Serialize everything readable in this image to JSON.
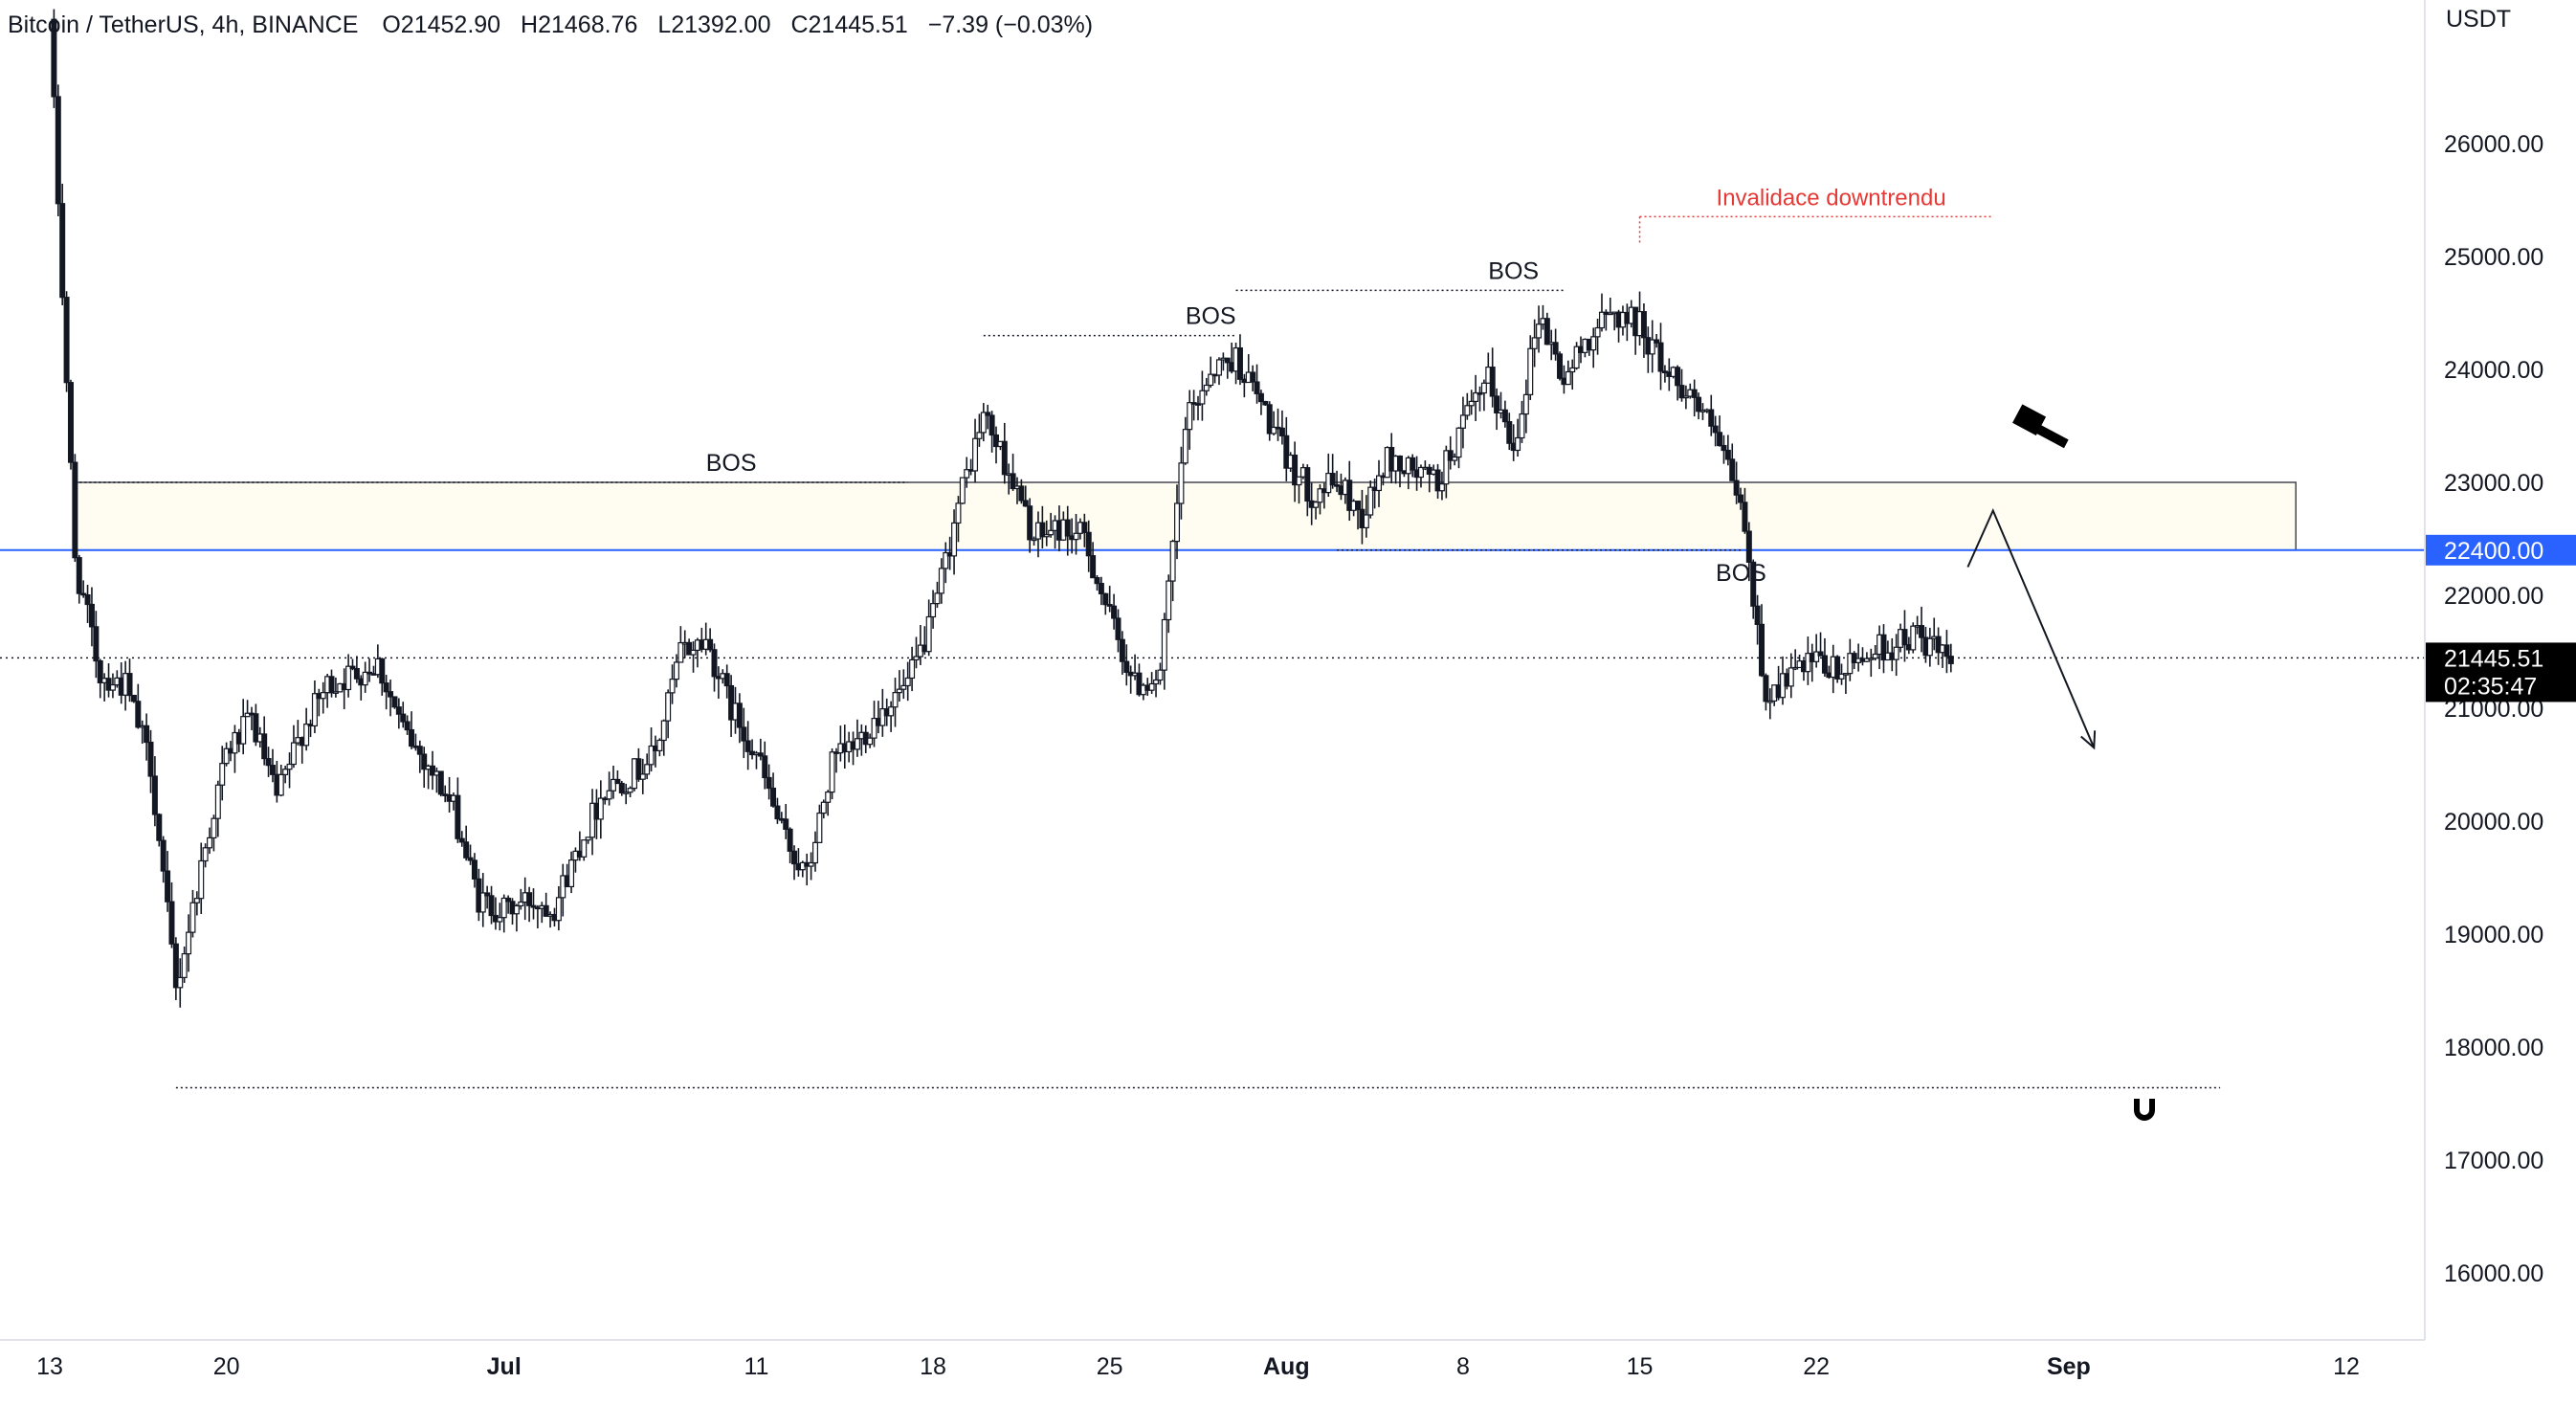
{
  "header": {
    "symbol": "Bitcoin / TetherUS",
    "interval": "4h",
    "exchange": "BINANCE",
    "open": "O21452.90",
    "high": "H21468.76",
    "low": "L21392.00",
    "close": "C21445.51",
    "change": "−7.39 (−0.03%)"
  },
  "chart_data": {
    "type": "candlestick",
    "currency_label": "USDT",
    "y_ticks": [
      "16000.00",
      "17000.00",
      "18000.00",
      "19000.00",
      "20000.00",
      "21000.00",
      "22000.00",
      "23000.00",
      "24000.00",
      "25000.00",
      "26000.00"
    ],
    "y_range": [
      15400,
      27300
    ],
    "x_ticks": [
      {
        "label": "13",
        "date": "2022-06-13",
        "bold": false
      },
      {
        "label": "20",
        "date": "2022-06-20",
        "bold": false
      },
      {
        "label": "Jul",
        "date": "2022-07-01",
        "bold": true
      },
      {
        "label": "11",
        "date": "2022-07-11",
        "bold": false
      },
      {
        "label": "18",
        "date": "2022-07-18",
        "bold": false
      },
      {
        "label": "25",
        "date": "2022-07-25",
        "bold": false
      },
      {
        "label": "Aug",
        "date": "2022-08-01",
        "bold": true
      },
      {
        "label": "8",
        "date": "2022-08-08",
        "bold": false
      },
      {
        "label": "15",
        "date": "2022-08-15",
        "bold": false
      },
      {
        "label": "22",
        "date": "2022-08-22",
        "bold": false
      },
      {
        "label": "Sep",
        "date": "2022-09-01",
        "bold": true
      },
      {
        "label": "12",
        "date": "2022-09-12",
        "bold": false
      }
    ],
    "x_range": [
      "2022-06-13",
      "2022-09-15"
    ],
    "price_path": [
      [
        "2022-06-13",
        27100
      ],
      [
        "2022-06-14",
        22300
      ],
      [
        "2022-06-15",
        21300
      ],
      [
        "2022-06-16",
        21200
      ],
      [
        "2022-06-17",
        20500
      ],
      [
        "2022-06-18",
        18500
      ],
      [
        "2022-06-19",
        19600
      ],
      [
        "2022-06-20",
        20600
      ],
      [
        "2022-06-21",
        20900
      ],
      [
        "2022-06-22",
        20200
      ],
      [
        "2022-06-23",
        20800
      ],
      [
        "2022-06-24",
        21200
      ],
      [
        "2022-06-25",
        21300
      ],
      [
        "2022-06-26",
        21400
      ],
      [
        "2022-06-27",
        20800
      ],
      [
        "2022-06-28",
        20500
      ],
      [
        "2022-06-29",
        20100
      ],
      [
        "2022-06-30",
        19300
      ],
      [
        "2022-07-01",
        19200
      ],
      [
        "2022-07-02",
        19300
      ],
      [
        "2022-07-03",
        19250
      ],
      [
        "2022-07-04",
        19800
      ],
      [
        "2022-07-05",
        20300
      ],
      [
        "2022-07-06",
        20400
      ],
      [
        "2022-07-07",
        20600
      ],
      [
        "2022-07-08",
        21500
      ],
      [
        "2022-07-09",
        21600
      ],
      [
        "2022-07-10",
        21000
      ],
      [
        "2022-07-11",
        20600
      ],
      [
        "2022-07-12",
        19900
      ],
      [
        "2022-07-13",
        19500
      ],
      [
        "2022-07-14",
        20500
      ],
      [
        "2022-07-15",
        20700
      ],
      [
        "2022-07-16",
        21000
      ],
      [
        "2022-07-17",
        21200
      ],
      [
        "2022-07-18",
        21800
      ],
      [
        "2022-07-19",
        22800
      ],
      [
        "2022-07-20",
        23600
      ],
      [
        "2022-07-21",
        23100
      ],
      [
        "2022-07-22",
        22500
      ],
      [
        "2022-07-23",
        22600
      ],
      [
        "2022-07-24",
        22500
      ],
      [
        "2022-07-25",
        21800
      ],
      [
        "2022-07-26",
        21200
      ],
      [
        "2022-07-27",
        21300
      ],
      [
        "2022-07-28",
        23500
      ],
      [
        "2022-07-29",
        24000
      ],
      [
        "2022-07-30",
        24100
      ],
      [
        "2022-07-31",
        23700
      ],
      [
        "2022-08-01",
        23200
      ],
      [
        "2022-08-02",
        22900
      ],
      [
        "2022-08-03",
        23000
      ],
      [
        "2022-08-04",
        22700
      ],
      [
        "2022-08-05",
        23200
      ],
      [
        "2022-08-06",
        23100
      ],
      [
        "2022-08-07",
        23000
      ],
      [
        "2022-08-08",
        23500
      ],
      [
        "2022-08-09",
        23900
      ],
      [
        "2022-08-10",
        23300
      ],
      [
        "2022-08-11",
        24500
      ],
      [
        "2022-08-12",
        23900
      ],
      [
        "2022-08-13",
        24300
      ],
      [
        "2022-08-14",
        24500
      ],
      [
        "2022-08-15",
        24400
      ],
      [
        "2022-08-16",
        24000
      ],
      [
        "2022-08-17",
        23800
      ],
      [
        "2022-08-18",
        23400
      ],
      [
        "2022-08-19",
        22800
      ],
      [
        "2022-08-20",
        21100
      ],
      [
        "2022-08-21",
        21300
      ],
      [
        "2022-08-22",
        21400
      ],
      [
        "2022-08-23",
        21300
      ],
      [
        "2022-08-24",
        21500
      ],
      [
        "2022-08-25",
        21550
      ],
      [
        "2022-08-26",
        21650
      ],
      [
        "2022-08-27",
        21445.51
      ]
    ],
    "zone": {
      "from": "2022-06-14",
      "to": "2022-09-10",
      "low": 22400,
      "high": 23000
    },
    "price_lines": [
      {
        "name": "zone-level",
        "value": 22400,
        "label": "22400.00",
        "color": "#2962ff"
      },
      {
        "name": "last-price",
        "value": 21445.51,
        "label": "21445.51",
        "countdown": "02:35:47"
      }
    ],
    "support_level": {
      "value": 17640,
      "from": "2022-06-18",
      "to": "2022-09-07"
    },
    "bos_labels": [
      {
        "text": "BOS",
        "date": "2022-07-09",
        "value": 23000,
        "line_from": "2022-06-14",
        "line_to": "2022-07-17"
      },
      {
        "text": "BOS",
        "date": "2022-07-28",
        "value": 24300,
        "line_from": "2022-07-20",
        "line_to": "2022-07-30"
      },
      {
        "text": "BOS",
        "date": "2022-08-09",
        "value": 24700,
        "line_from": "2022-07-30",
        "line_to": "2022-08-12"
      },
      {
        "text": "BOS",
        "date": "2022-08-19",
        "value": 22400,
        "line_from": "2022-08-03",
        "line_to": "2022-08-19"
      }
    ],
    "annotation": {
      "text": "Invalidace downtrendu",
      "value": 25200,
      "from": "2022-08-15",
      "to": "2022-08-29",
      "color": "#e53935"
    },
    "projection": [
      [
        "2022-08-28",
        22250
      ],
      [
        "2022-08-29",
        22750
      ],
      [
        "2022-09-02",
        20650
      ]
    ],
    "colors": {
      "candle": "#131722",
      "zone_fill": "#fffdf2",
      "zone_border": "#434651",
      "blue": "#2962ff",
      "red": "#e53935",
      "grid_text": "#131722"
    }
  }
}
